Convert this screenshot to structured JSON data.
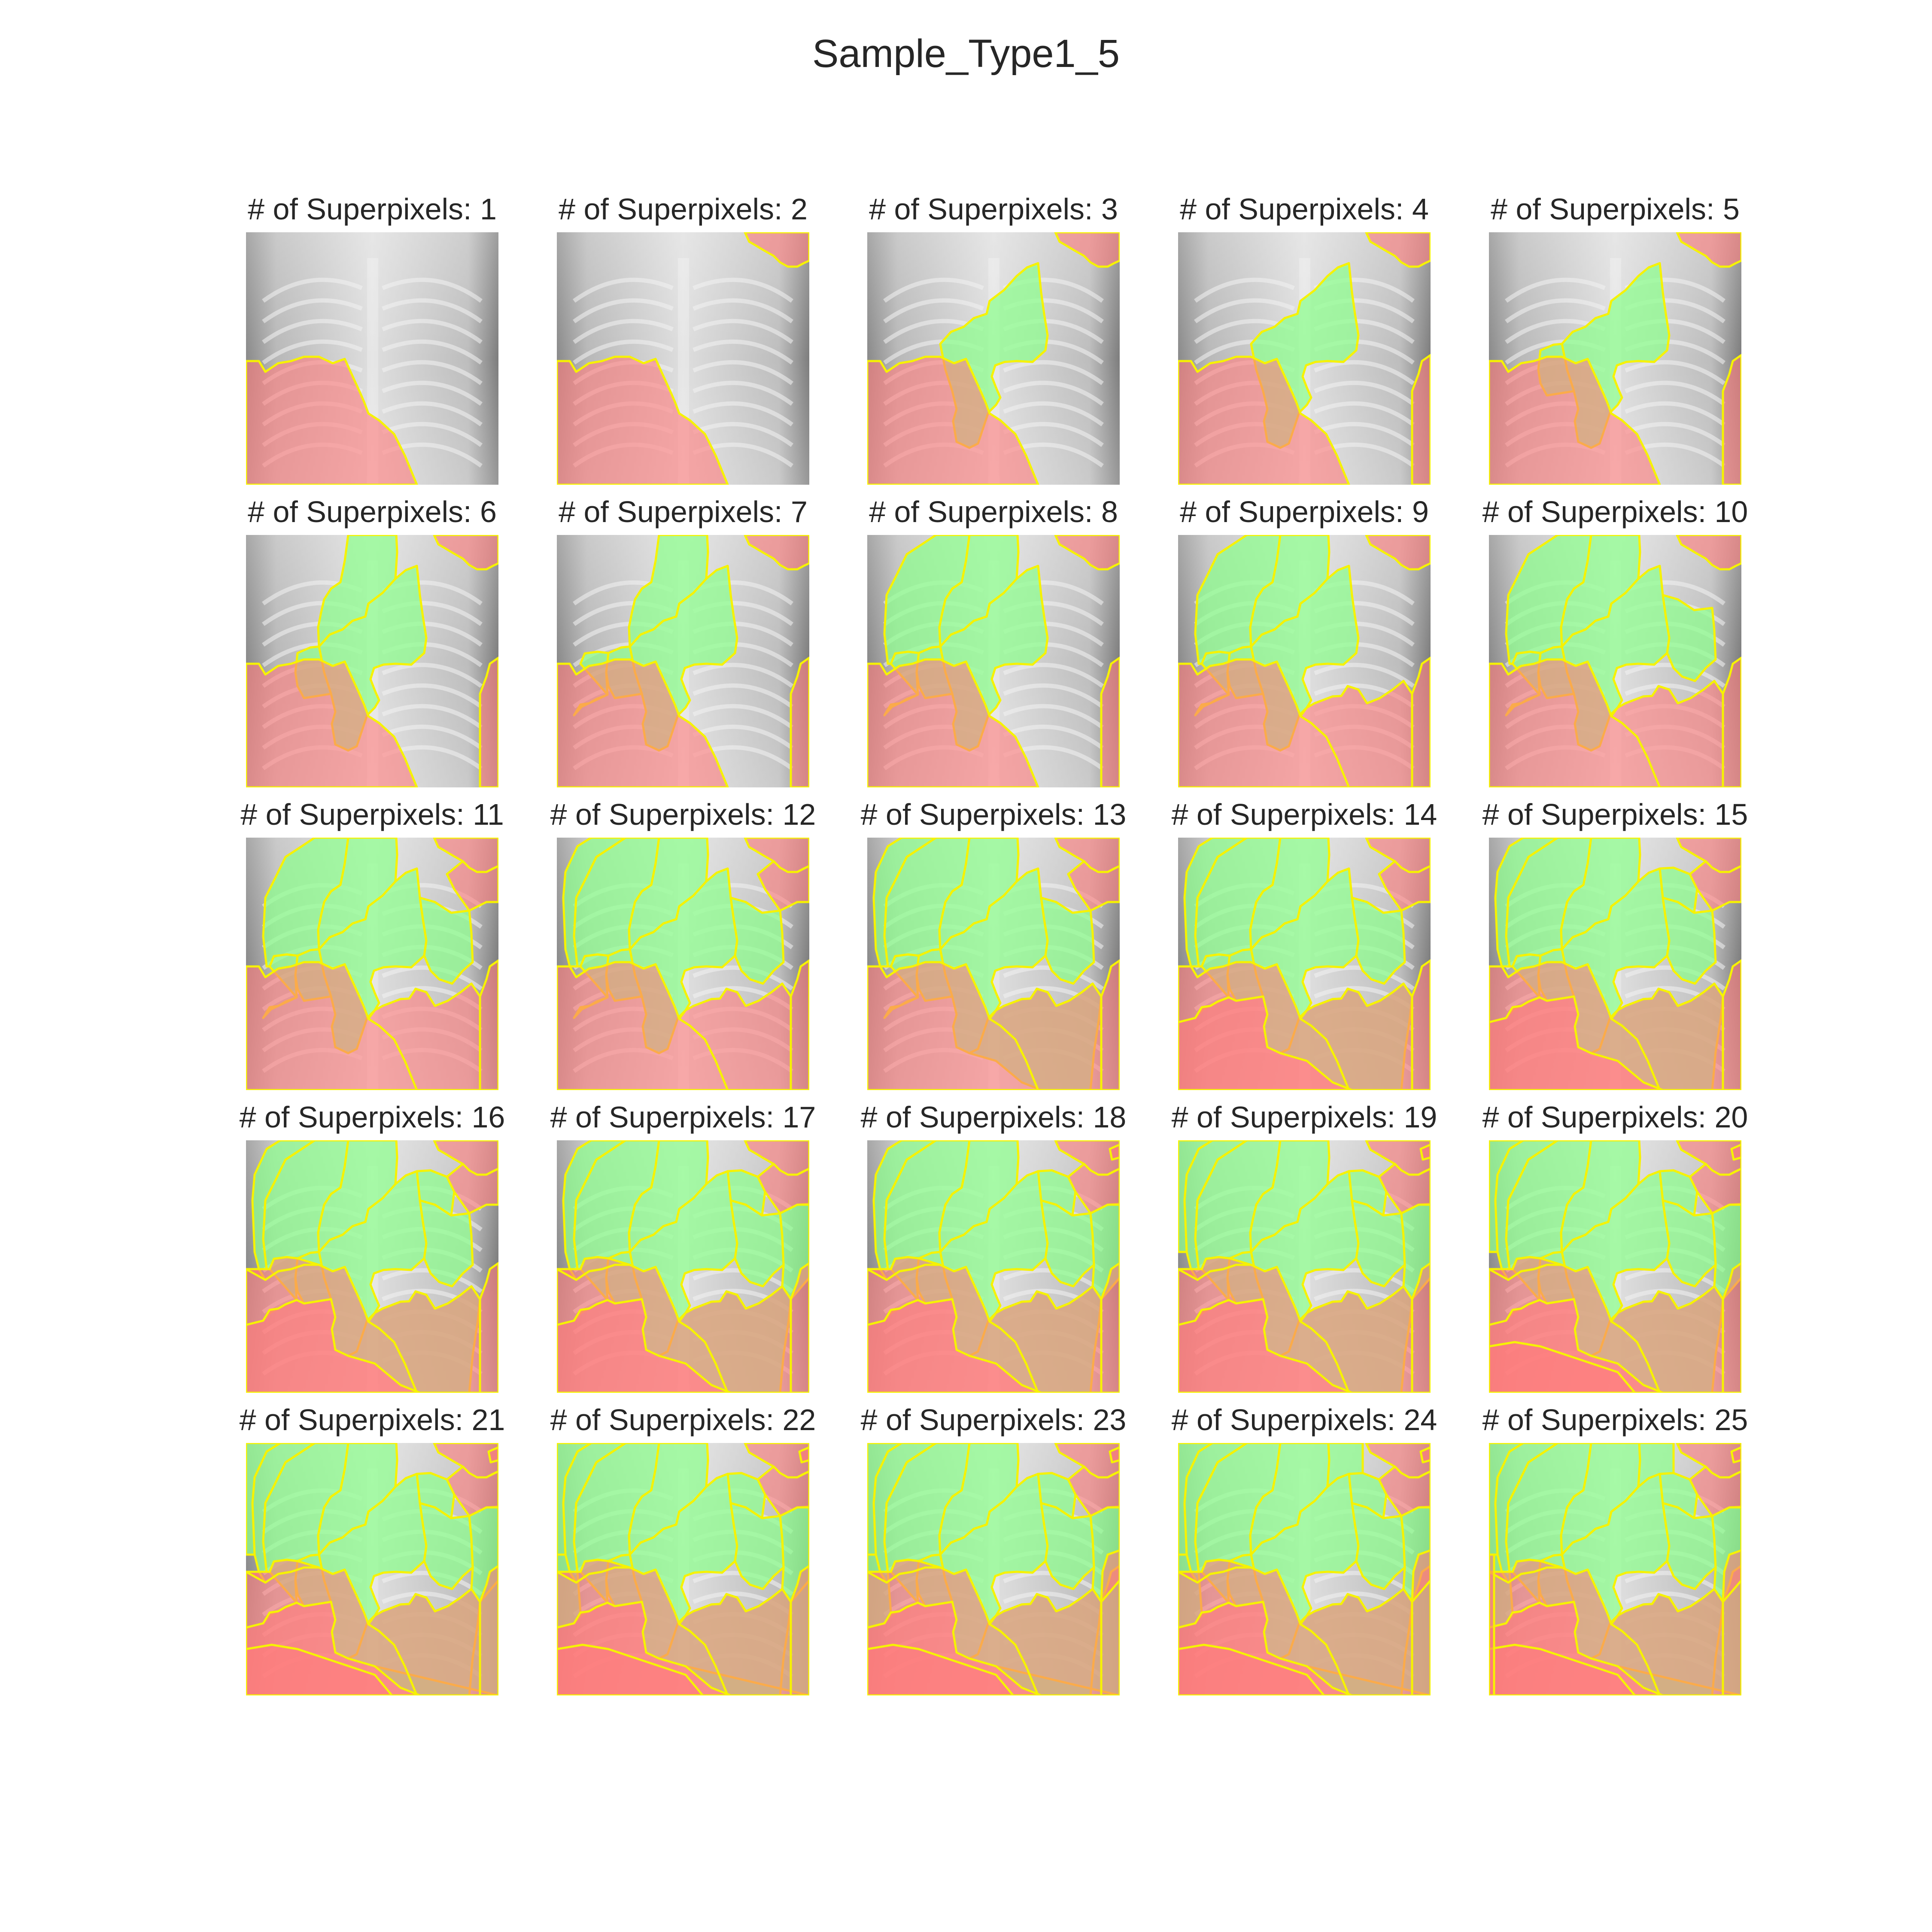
{
  "figure": {
    "title": "Sample_Type1_5"
  },
  "colors": {
    "background": "#ffffff",
    "xray_light": "#dedede",
    "xray_dark": "#7d7d7d",
    "positive_overlay": "#8cff8c",
    "negative_overlay": "#ff7b7b",
    "boundary": "#f6f200"
  },
  "panels": [
    {
      "title": "# of Superpixels: 1",
      "green": 0,
      "red": 1
    },
    {
      "title": "# of Superpixels: 2",
      "green": 0,
      "red": 2
    },
    {
      "title": "# of Superpixels: 3",
      "green": 1,
      "red": 2
    },
    {
      "title": "# of Superpixels: 4",
      "green": 1,
      "red": 3
    },
    {
      "title": "# of Superpixels: 5",
      "green": 2,
      "red": 3
    },
    {
      "title": "# of Superpixels: 6",
      "green": 3,
      "red": 3
    },
    {
      "title": "# of Superpixels: 7",
      "green": 4,
      "red": 3
    },
    {
      "title": "# of Superpixels: 8",
      "green": 5,
      "red": 3
    },
    {
      "title": "# of Superpixels: 9",
      "green": 5,
      "red": 4
    },
    {
      "title": "# of Superpixels: 10",
      "green": 6,
      "red": 4
    },
    {
      "title": "# of Superpixels: 11",
      "green": 6,
      "red": 5
    },
    {
      "title": "# of Superpixels: 12",
      "green": 7,
      "red": 5
    },
    {
      "title": "# of Superpixels: 13",
      "green": 8,
      "red": 5
    },
    {
      "title": "# of Superpixels: 14",
      "green": 8,
      "red": 6
    },
    {
      "title": "# of Superpixels: 15",
      "green": 9,
      "red": 6
    },
    {
      "title": "# of Superpixels: 16",
      "green": 9,
      "red": 7
    },
    {
      "title": "# of Superpixels: 17",
      "green": 10,
      "red": 7
    },
    {
      "title": "# of Superpixels: 18",
      "green": 10,
      "red": 8
    },
    {
      "title": "# of Superpixels: 19",
      "green": 11,
      "red": 8
    },
    {
      "title": "# of Superpixels: 20",
      "green": 11,
      "red": 9
    },
    {
      "title": "# of Superpixels: 21",
      "green": 12,
      "red": 9
    },
    {
      "title": "# of Superpixels: 22",
      "green": 13,
      "red": 9
    },
    {
      "title": "# of Superpixels: 23",
      "green": 13,
      "red": 10
    },
    {
      "title": "# of Superpixels: 24",
      "green": 14,
      "red": 10
    },
    {
      "title": "# of Superpixels: 25",
      "green": 14,
      "red": 11
    }
  ]
}
